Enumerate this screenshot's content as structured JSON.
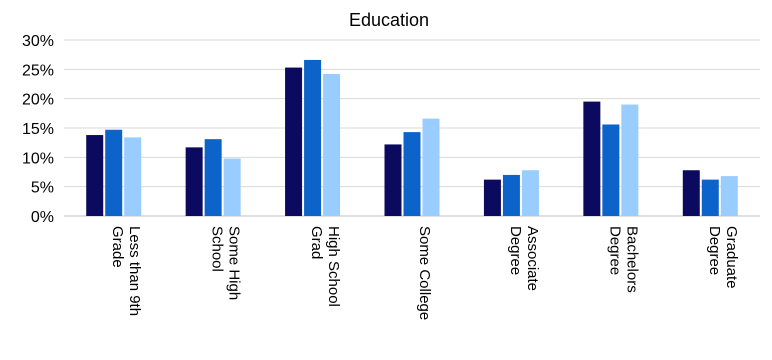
{
  "chart_data": {
    "type": "bar",
    "title": "Education",
    "xlabel": "",
    "ylabel": "",
    "ylim": [
      0,
      30
    ],
    "yticks": [
      "0%",
      "5%",
      "10%",
      "15%",
      "20%",
      "25%",
      "30%"
    ],
    "grid": true,
    "legend": "none",
    "categories": [
      [
        "Less than 9th",
        "Grade"
      ],
      [
        "Some High",
        "School"
      ],
      [
        "High School",
        "Grad"
      ],
      [
        "Some College"
      ],
      [
        "Associate",
        "Degree"
      ],
      [
        "Bachelors",
        "Degree"
      ],
      [
        "Graduate",
        "Degree"
      ]
    ],
    "series": [
      {
        "color": "#0c0a5e",
        "values": [
          13.8,
          11.7,
          25.3,
          12.2,
          6.2,
          19.5,
          7.8
        ]
      },
      {
        "color": "#0c63c9",
        "values": [
          14.7,
          13.1,
          26.6,
          14.3,
          7.0,
          15.6,
          6.2
        ]
      },
      {
        "color": "#99ccff",
        "values": [
          13.4,
          9.8,
          24.2,
          16.6,
          7.8,
          19.0,
          6.8
        ]
      }
    ],
    "gridline_color": "#d9d9d9"
  }
}
